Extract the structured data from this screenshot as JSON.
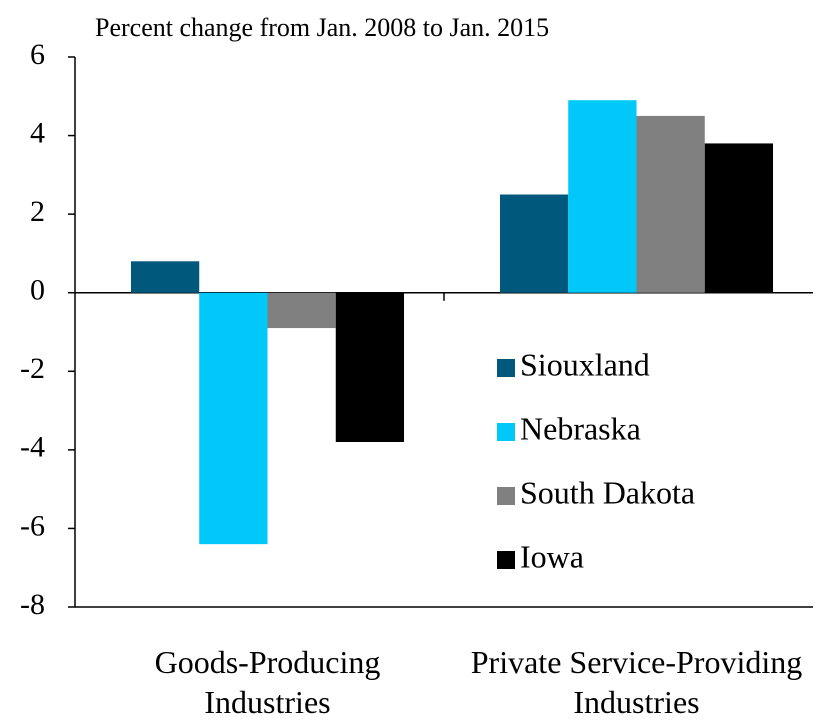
{
  "chart_data": {
    "type": "bar",
    "title": "Percent change from Jan. 2008 to Jan. 2015",
    "categories": [
      "Goods-Producing Industries",
      "Private Service-Providing Industries"
    ],
    "series": [
      {
        "name": "Siouxland",
        "color": "#00597c",
        "values": [
          0.8,
          2.5
        ]
      },
      {
        "name": "Nebraska",
        "color": "#00c8f8",
        "values": [
          -6.4,
          4.9
        ]
      },
      {
        "name": "South Dakota",
        "color": "#808080",
        "values": [
          -0.9,
          4.5
        ]
      },
      {
        "name": "Iowa",
        "color": "#000000",
        "values": [
          -3.8,
          3.8
        ]
      }
    ],
    "ylim": [
      -8,
      6
    ],
    "yticks": [
      -8,
      -6,
      -4,
      -2,
      0,
      2,
      4,
      6
    ],
    "legend": "right"
  }
}
